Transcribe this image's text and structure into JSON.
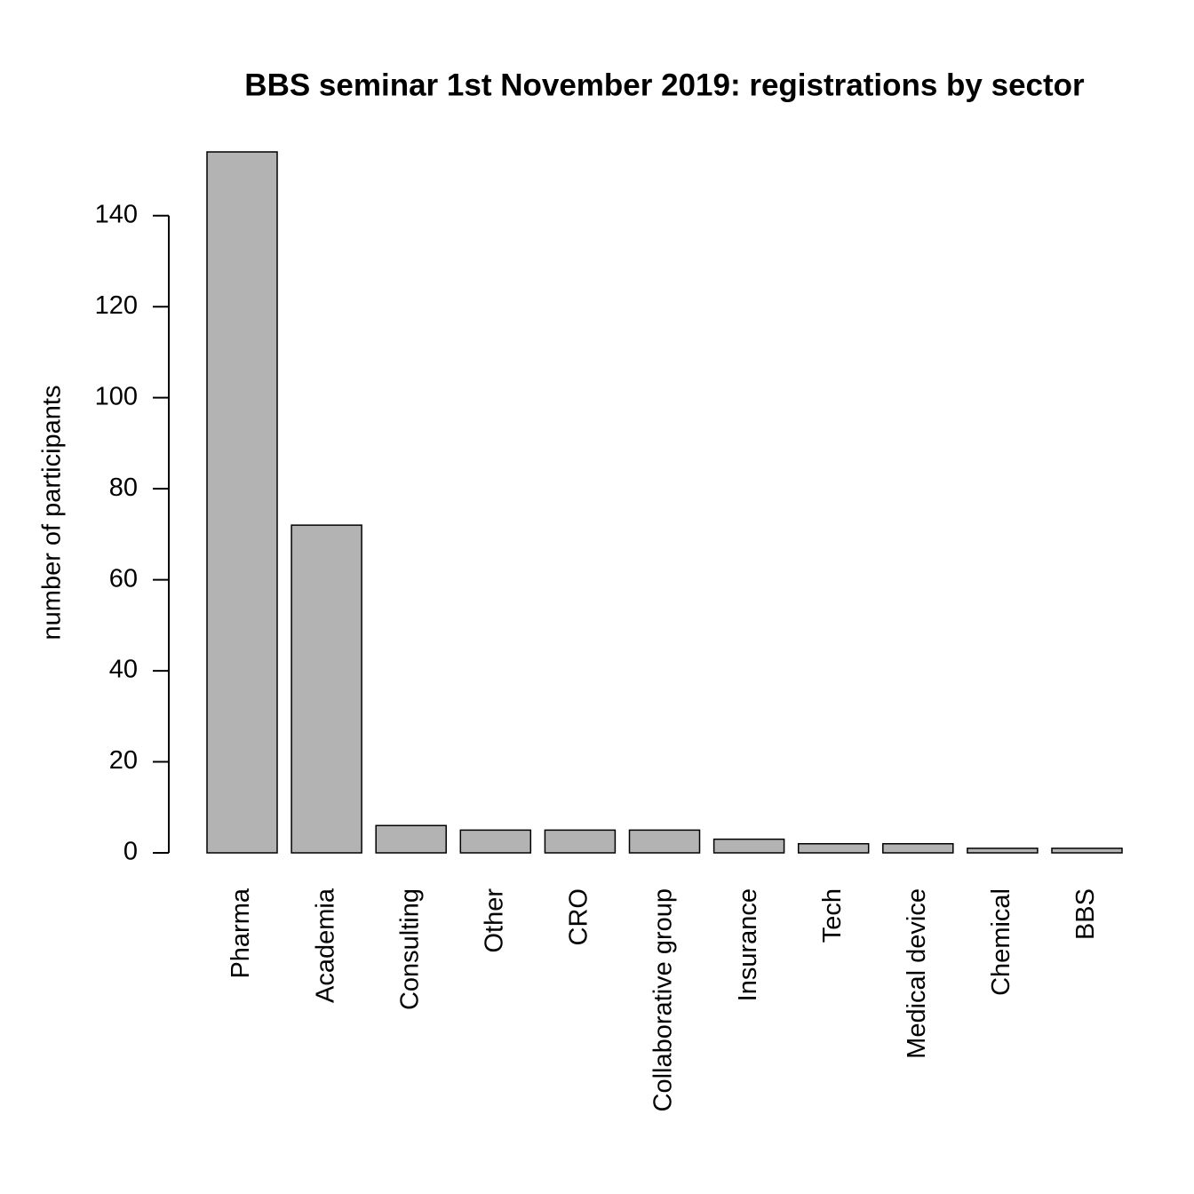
{
  "chart_data": {
    "type": "bar",
    "title": "BBS seminar 1st November 2019: registrations by sector",
    "y_label": "number of participants",
    "categories": [
      "Pharma",
      "Academia",
      "Consulting",
      "Other",
      "CRO",
      "Collaborative group",
      "Insurance",
      "Tech",
      "Medical device",
      "Chemical",
      "BBS"
    ],
    "values": [
      154,
      72,
      6,
      5,
      5,
      5,
      3,
      2,
      2,
      1,
      1
    ],
    "color": "#b3b3b3",
    "ylim": [
      0,
      154
    ],
    "yticks": [
      0,
      20,
      40,
      60,
      80,
      100,
      120,
      140
    ]
  }
}
